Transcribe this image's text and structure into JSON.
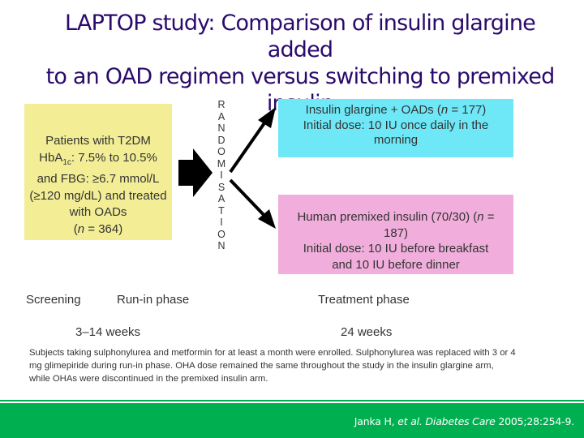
{
  "title_lines": [
    "LAPTOP study: Comparison of insulin glargine added",
    "to an OAD regimen versus switching to premixed",
    "insulin"
  ],
  "patients_box": {
    "line1": "Patients with T2DM",
    "hba1c_prefix": "HbA",
    "hba1c_sub": "1c",
    "hba1c_suffix": ": 7.5% to 10.5%",
    "line3": "and FBG: ≥6.7 mmol/L",
    "line4": "(≥120 mg/dL) and treated",
    "line5": "with OADs",
    "n_open": "(",
    "n_label": "n",
    "n_value": " = 364)",
    "color": "#f3ee95"
  },
  "randomise_letters": [
    "R",
    "A",
    "N",
    "D",
    "O",
    "M",
    "I",
    "S",
    "A",
    "T",
    "I",
    "O",
    "N"
  ],
  "glargine_box": {
    "line1_prefix": "Insulin glargine + OADs (",
    "n_label": "n",
    "line1_suffix": " = 177)",
    "line2": "Initial dose: 10 IU once daily in the",
    "line3": "morning",
    "color": "#6ee8f7"
  },
  "premixed_box": {
    "line1_prefix": "Human premixed insulin (70/30) (",
    "n_label": "n",
    "line1_suffix": " =",
    "line2": "187)",
    "line3": "Initial dose: 10 IU before breakfast",
    "line4": "and 10 IU before dinner",
    "color": "#f1aedc"
  },
  "phases": {
    "screening": "Screening",
    "run_in": "Run-in phase",
    "treatment": "Treatment phase",
    "run_in_duration": "3–14 weeks",
    "treatment_duration": "24 weeks"
  },
  "footnote": "Subjects taking sulphonylurea and metformin for at least a month were enrolled. Sulphonylurea was replaced with 3 or 4 mg glimepiride during run-in phase. OHA dose remained the same throughout the study in the insulin glargine arm, while OHAs were discontinued in the premixed insulin arm.",
  "citation": {
    "authors": "Janka H, ",
    "etal": "et al.",
    "journal": "Diabetes Care",
    "ref": " 2005;28:254-9."
  },
  "colors": {
    "title": "#2a0a6b",
    "accent_bar": "#00b050"
  }
}
